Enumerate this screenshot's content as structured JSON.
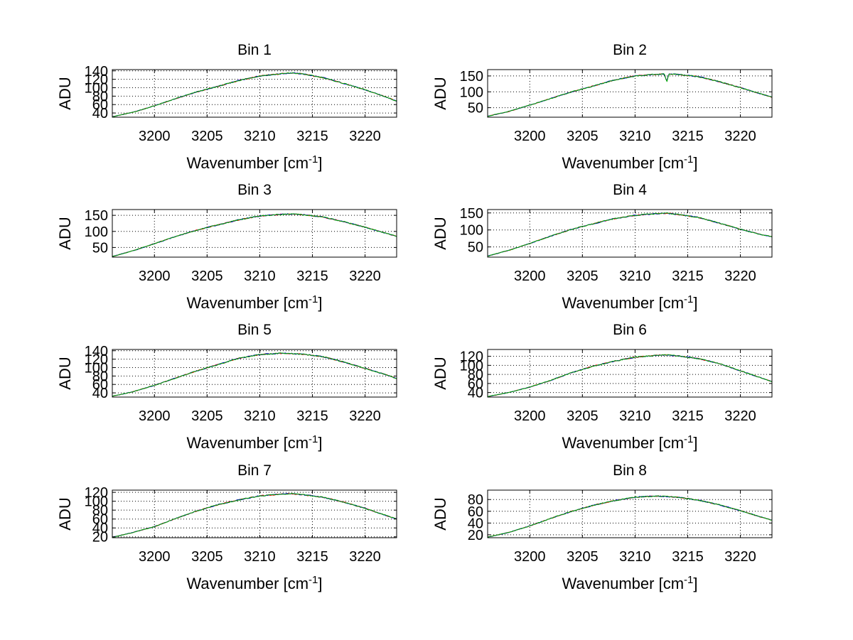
{
  "chart_data": [
    {
      "type": "line",
      "title": "Bin 1",
      "xlabel": "Wavenumber [cm",
      "xlabel_sup": "-1",
      "xlabel_suffix": "]",
      "ylabel": "ADU",
      "xlim": [
        3196,
        3223
      ],
      "ylim": [
        30,
        143
      ],
      "xticks": [
        3200,
        3205,
        3210,
        3215,
        3220
      ],
      "yticks": [
        40,
        60,
        80,
        100,
        120,
        140
      ],
      "grid": true,
      "series": [
        {
          "color": "#ff0000",
          "x": [
            3196,
            3198,
            3200,
            3202,
            3204,
            3206,
            3208,
            3210,
            3212,
            3213,
            3214,
            3216,
            3218,
            3220,
            3222,
            3223
          ],
          "y": [
            31,
            42,
            57,
            74,
            90,
            103,
            117,
            128,
            133,
            135,
            133,
            124,
            110,
            95,
            78,
            68
          ]
        },
        {
          "color": "#0000cc",
          "x": [
            3196,
            3198,
            3200,
            3202,
            3204,
            3206,
            3208,
            3210,
            3212,
            3213,
            3214,
            3216,
            3218,
            3220,
            3222,
            3223
          ],
          "y": [
            31,
            42,
            57,
            74,
            90,
            103,
            117,
            128,
            133,
            135,
            133,
            124,
            110,
            95,
            78,
            68
          ]
        },
        {
          "color": "#00aa00",
          "x": [
            3196,
            3198,
            3200,
            3202,
            3204,
            3206,
            3208,
            3210,
            3212,
            3213,
            3214,
            3216,
            3218,
            3220,
            3222,
            3223
          ],
          "y": [
            31,
            42,
            57,
            74,
            90,
            103,
            117,
            128,
            133,
            135,
            133,
            124,
            110,
            95,
            78,
            68
          ]
        }
      ]
    },
    {
      "type": "line",
      "title": "Bin 2",
      "xlabel": "Wavenumber [cm",
      "xlabel_sup": "-1",
      "xlabel_suffix": "]",
      "ylabel": "ADU",
      "xlim": [
        3196,
        3223
      ],
      "ylim": [
        20,
        170
      ],
      "xticks": [
        3200,
        3205,
        3210,
        3215,
        3220
      ],
      "yticks": [
        50,
        100,
        150
      ],
      "grid": true,
      "series": [
        {
          "color": "#ff0000",
          "x": [
            3196,
            3198,
            3200,
            3202,
            3204,
            3206,
            3208,
            3210,
            3212,
            3212.8,
            3213,
            3213.2,
            3214,
            3216,
            3218,
            3220,
            3222,
            3223
          ],
          "y": [
            23,
            38,
            58,
            79,
            100,
            118,
            137,
            150,
            155,
            156,
            130,
            156,
            155,
            148,
            132,
            113,
            93,
            83
          ]
        },
        {
          "color": "#0000cc",
          "x": [
            3196,
            3198,
            3200,
            3202,
            3204,
            3206,
            3208,
            3210,
            3212,
            3212.8,
            3213,
            3213.2,
            3214,
            3216,
            3218,
            3220,
            3222,
            3223
          ],
          "y": [
            23,
            38,
            58,
            79,
            100,
            118,
            137,
            150,
            155,
            156,
            130,
            156,
            155,
            148,
            132,
            113,
            93,
            83
          ]
        },
        {
          "color": "#00aa00",
          "x": [
            3196,
            3198,
            3200,
            3202,
            3204,
            3206,
            3208,
            3210,
            3212,
            3212.8,
            3213,
            3213.2,
            3214,
            3216,
            3218,
            3220,
            3222,
            3223
          ],
          "y": [
            23,
            38,
            58,
            79,
            100,
            118,
            137,
            150,
            155,
            156,
            130,
            156,
            155,
            148,
            132,
            113,
            93,
            83
          ]
        }
      ]
    },
    {
      "type": "line",
      "title": "Bin 3",
      "xlabel": "Wavenumber [cm",
      "xlabel_sup": "-1",
      "xlabel_suffix": "]",
      "ylabel": "ADU",
      "xlim": [
        3196,
        3223
      ],
      "ylim": [
        20,
        168
      ],
      "xticks": [
        3200,
        3205,
        3210,
        3215,
        3220
      ],
      "yticks": [
        50,
        100,
        150
      ],
      "grid": true,
      "series": [
        {
          "color": "#ff0000",
          "x": [
            3196,
            3198,
            3200,
            3202,
            3204,
            3206,
            3208,
            3210,
            3212,
            3213,
            3214,
            3216,
            3218,
            3220,
            3222,
            3223
          ],
          "y": [
            22,
            40,
            62,
            84,
            104,
            120,
            136,
            148,
            153,
            154,
            152,
            145,
            130,
            113,
            94,
            85
          ]
        },
        {
          "color": "#0000cc",
          "x": [
            3196,
            3198,
            3200,
            3202,
            3204,
            3206,
            3208,
            3210,
            3212,
            3213,
            3214,
            3216,
            3218,
            3220,
            3222,
            3223
          ],
          "y": [
            22,
            40,
            62,
            84,
            104,
            120,
            136,
            148,
            153,
            154,
            152,
            145,
            130,
            113,
            94,
            85
          ]
        },
        {
          "color": "#00aa00",
          "x": [
            3196,
            3198,
            3200,
            3202,
            3204,
            3206,
            3208,
            3210,
            3212,
            3213,
            3214,
            3216,
            3218,
            3220,
            3222,
            3223
          ],
          "y": [
            22,
            40,
            62,
            84,
            104,
            120,
            136,
            148,
            153,
            154,
            152,
            145,
            130,
            113,
            94,
            85
          ]
        }
      ]
    },
    {
      "type": "line",
      "title": "Bin 4",
      "xlabel": "Wavenumber [cm",
      "xlabel_sup": "-1",
      "xlabel_suffix": "]",
      "ylabel": "ADU",
      "xlim": [
        3196,
        3223
      ],
      "ylim": [
        20,
        160
      ],
      "xticks": [
        3200,
        3205,
        3210,
        3215,
        3220
      ],
      "yticks": [
        50,
        100,
        150
      ],
      "grid": true,
      "series": [
        {
          "color": "#ff0000",
          "x": [
            3196,
            3198,
            3200,
            3202,
            3204,
            3206,
            3208,
            3210,
            3212,
            3213,
            3214,
            3216,
            3218,
            3220,
            3222,
            3223
          ],
          "y": [
            23,
            40,
            60,
            82,
            102,
            118,
            133,
            143,
            148,
            149,
            146,
            137,
            120,
            102,
            86,
            80
          ]
        },
        {
          "color": "#0000cc",
          "x": [
            3196,
            3198,
            3200,
            3202,
            3204,
            3206,
            3208,
            3210,
            3212,
            3213,
            3214,
            3216,
            3218,
            3220,
            3222,
            3223
          ],
          "y": [
            23,
            40,
            60,
            82,
            102,
            118,
            133,
            143,
            148,
            149,
            146,
            137,
            120,
            102,
            86,
            80
          ]
        },
        {
          "color": "#00aa00",
          "x": [
            3196,
            3198,
            3200,
            3202,
            3204,
            3206,
            3208,
            3210,
            3212,
            3213,
            3214,
            3216,
            3218,
            3220,
            3222,
            3223
          ],
          "y": [
            23,
            40,
            60,
            82,
            102,
            118,
            133,
            143,
            148,
            149,
            146,
            137,
            120,
            102,
            86,
            80
          ]
        }
      ]
    },
    {
      "type": "line",
      "title": "Bin 5",
      "xlabel": "Wavenumber [cm",
      "xlabel_sup": "-1",
      "xlabel_suffix": "]",
      "ylabel": "ADU",
      "xlim": [
        3196,
        3223
      ],
      "ylim": [
        30,
        143
      ],
      "xticks": [
        3200,
        3205,
        3210,
        3215,
        3220
      ],
      "yticks": [
        40,
        60,
        80,
        100,
        120,
        140
      ],
      "grid": true,
      "series": [
        {
          "color": "#ff0000",
          "x": [
            3196,
            3198,
            3200,
            3202,
            3204,
            3206,
            3208,
            3210,
            3212,
            3214,
            3216,
            3218,
            3220,
            3222,
            3223
          ],
          "y": [
            32,
            43,
            58,
            75,
            92,
            107,
            122,
            131,
            134,
            132,
            126,
            113,
            98,
            83,
            74
          ]
        },
        {
          "color": "#0000cc",
          "x": [
            3196,
            3198,
            3200,
            3202,
            3204,
            3206,
            3208,
            3210,
            3212,
            3214,
            3216,
            3218,
            3220,
            3222,
            3223
          ],
          "y": [
            32,
            43,
            58,
            75,
            92,
            107,
            122,
            131,
            134,
            132,
            126,
            113,
            98,
            83,
            74
          ]
        },
        {
          "color": "#00aa00",
          "x": [
            3196,
            3198,
            3200,
            3202,
            3204,
            3206,
            3208,
            3210,
            3212,
            3214,
            3216,
            3218,
            3220,
            3222,
            3223
          ],
          "y": [
            32,
            43,
            58,
            75,
            92,
            107,
            122,
            131,
            134,
            132,
            126,
            113,
            98,
            83,
            74
          ]
        }
      ]
    },
    {
      "type": "line",
      "title": "Bin 6",
      "xlabel": "Wavenumber [cm",
      "xlabel_sup": "-1",
      "xlabel_suffix": "]",
      "ylabel": "ADU",
      "xlim": [
        3196,
        3223
      ],
      "ylim": [
        30,
        135
      ],
      "xticks": [
        3200,
        3205,
        3210,
        3215,
        3220
      ],
      "yticks": [
        40,
        60,
        80,
        100,
        120
      ],
      "grid": true,
      "series": [
        {
          "color": "#ff0000",
          "x": [
            3196,
            3198,
            3200,
            3202,
            3204,
            3206,
            3208,
            3210,
            3212,
            3213,
            3214,
            3216,
            3218,
            3220,
            3222,
            3223
          ],
          "y": [
            31,
            40,
            52,
            67,
            84,
            98,
            109,
            118,
            122,
            123,
            121,
            115,
            104,
            88,
            72,
            64
          ]
        },
        {
          "color": "#0000cc",
          "x": [
            3196,
            3198,
            3200,
            3202,
            3204,
            3206,
            3208,
            3210,
            3212,
            3213,
            3214,
            3216,
            3218,
            3220,
            3222,
            3223
          ],
          "y": [
            31,
            40,
            52,
            67,
            84,
            98,
            109,
            118,
            122,
            123,
            121,
            115,
            104,
            88,
            72,
            64
          ]
        },
        {
          "color": "#00aa00",
          "x": [
            3196,
            3198,
            3200,
            3202,
            3204,
            3206,
            3208,
            3210,
            3212,
            3213,
            3214,
            3216,
            3218,
            3220,
            3222,
            3223
          ],
          "y": [
            31,
            40,
            52,
            67,
            84,
            98,
            109,
            118,
            122,
            123,
            121,
            115,
            104,
            88,
            72,
            64
          ]
        }
      ]
    },
    {
      "type": "line",
      "title": "Bin 7",
      "xlabel": "Wavenumber [cm",
      "xlabel_sup": "-1",
      "xlabel_suffix": "]",
      "ylabel": "ADU",
      "xlim": [
        3196,
        3223
      ],
      "ylim": [
        18,
        125
      ],
      "xticks": [
        3200,
        3205,
        3210,
        3215,
        3220
      ],
      "yticks": [
        20,
        40,
        60,
        80,
        100,
        120
      ],
      "grid": true,
      "series": [
        {
          "color": "#ff0000",
          "x": [
            3196,
            3198,
            3200,
            3202,
            3204,
            3206,
            3208,
            3210,
            3212,
            3213,
            3214,
            3216,
            3218,
            3220,
            3222,
            3223
          ],
          "y": [
            19,
            30,
            43,
            61,
            78,
            92,
            103,
            112,
            116,
            117,
            115,
            109,
            98,
            84,
            68,
            60
          ]
        },
        {
          "color": "#0000cc",
          "x": [
            3196,
            3198,
            3200,
            3202,
            3204,
            3206,
            3208,
            3210,
            3212,
            3213,
            3214,
            3216,
            3218,
            3220,
            3222,
            3223
          ],
          "y": [
            19,
            30,
            43,
            61,
            78,
            92,
            103,
            112,
            116,
            117,
            115,
            109,
            98,
            84,
            68,
            60
          ]
        },
        {
          "color": "#00aa00",
          "x": [
            3196,
            3198,
            3200,
            3202,
            3204,
            3206,
            3208,
            3210,
            3212,
            3213,
            3214,
            3216,
            3218,
            3220,
            3222,
            3223
          ],
          "y": [
            19,
            30,
            43,
            61,
            78,
            92,
            103,
            112,
            116,
            117,
            115,
            109,
            98,
            84,
            68,
            60
          ]
        }
      ]
    },
    {
      "type": "line",
      "title": "Bin 8",
      "xlabel": "Wavenumber [cm",
      "xlabel_sup": "-1",
      "xlabel_suffix": "]",
      "ylabel": "ADU",
      "xlim": [
        3196,
        3223
      ],
      "ylim": [
        15,
        96
      ],
      "xticks": [
        3200,
        3205,
        3210,
        3215,
        3220
      ],
      "yticks": [
        20,
        40,
        60,
        80
      ],
      "grid": true,
      "series": [
        {
          "color": "#ff0000",
          "x": [
            3196,
            3198,
            3200,
            3202,
            3204,
            3206,
            3208,
            3210,
            3212,
            3214,
            3216,
            3218,
            3220,
            3222,
            3223
          ],
          "y": [
            16,
            24,
            35,
            48,
            60,
            70,
            78,
            84,
            86,
            84,
            79,
            71,
            61,
            50,
            45
          ]
        },
        {
          "color": "#0000cc",
          "x": [
            3196,
            3198,
            3200,
            3202,
            3204,
            3206,
            3208,
            3210,
            3212,
            3214,
            3216,
            3218,
            3220,
            3222,
            3223
          ],
          "y": [
            16,
            24,
            35,
            48,
            60,
            70,
            78,
            84,
            86,
            84,
            79,
            71,
            61,
            50,
            45
          ]
        },
        {
          "color": "#00aa00",
          "x": [
            3196,
            3198,
            3200,
            3202,
            3204,
            3206,
            3208,
            3210,
            3212,
            3214,
            3216,
            3218,
            3220,
            3222,
            3223
          ],
          "y": [
            16,
            24,
            35,
            48,
            60,
            70,
            78,
            84,
            86,
            84,
            79,
            71,
            61,
            50,
            45
          ]
        }
      ]
    }
  ]
}
